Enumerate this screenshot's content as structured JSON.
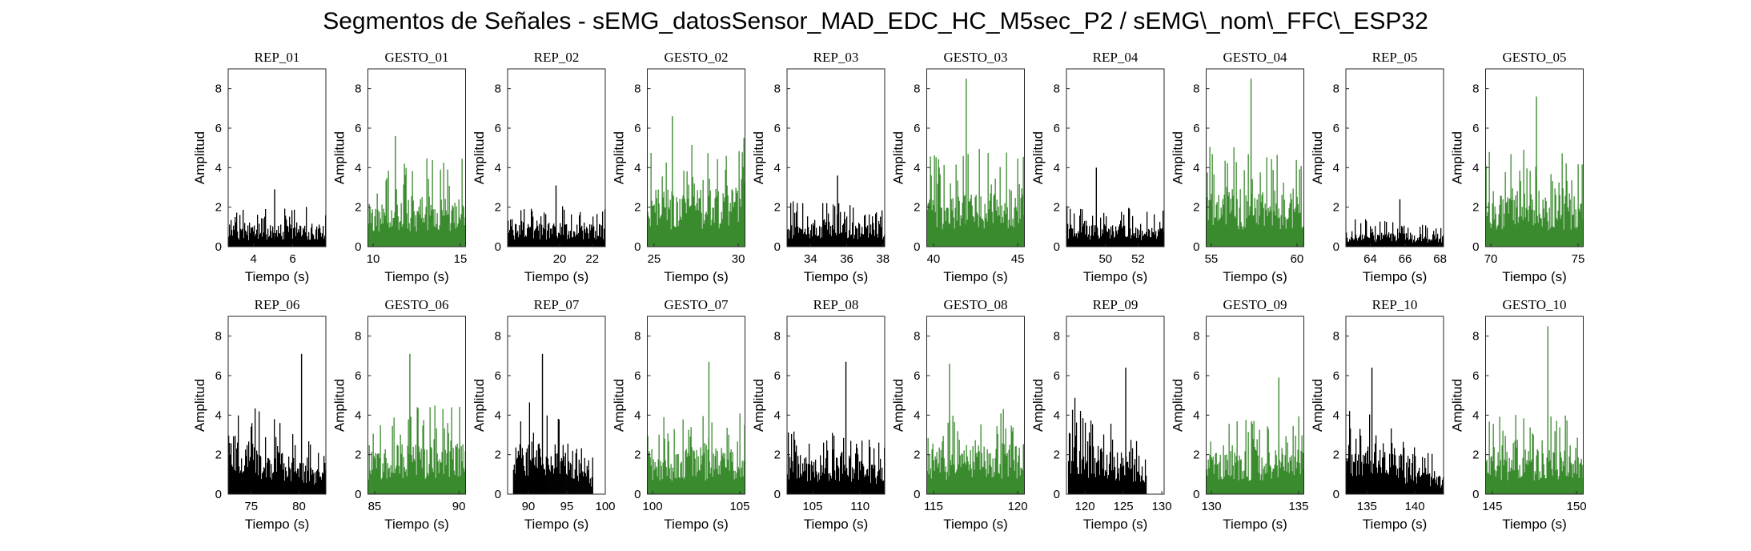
{
  "figure": {
    "title": "Segmentos de Señales - sEMG_datosSensor_MAD_EDC_HC_M5sec_P2 / sEMG\\_nom\\_FFC\\_ESP32"
  },
  "colors": {
    "rep": "#000000",
    "gesto": "#3a8a2e",
    "axis": "#262626"
  },
  "chart_data": [
    {
      "type": "bar",
      "title": "REP_01",
      "xlabel": "Tiempo (s)",
      "ylabel": "Amplitud",
      "xlim": [
        2.7,
        7.7
      ],
      "ylim": [
        0,
        9
      ],
      "xticks": [
        4,
        6
      ],
      "yticks": [
        0,
        2,
        4,
        6,
        8
      ],
      "kind": "rep",
      "x_start": 2.7,
      "x_end": 7.7,
      "level_start": 0.9,
      "level_end": 1.0,
      "peak": 2.9
    },
    {
      "type": "bar",
      "title": "GESTO_01",
      "xlabel": "Tiempo (s)",
      "ylabel": "Amplitud",
      "xlim": [
        9.7,
        15.3
      ],
      "ylim": [
        0,
        9
      ],
      "xticks": [
        10,
        15
      ],
      "yticks": [
        0,
        2,
        4,
        6,
        8
      ],
      "kind": "gesto",
      "x_start": 9.7,
      "x_end": 15.3,
      "level_start": 1.9,
      "level_end": 2.3,
      "peak": 5.6
    },
    {
      "type": "bar",
      "title": "REP_02",
      "xlabel": "Tiempo (s)",
      "ylabel": "Amplitud",
      "xlim": [
        16.8,
        22.8
      ],
      "ylim": [
        0,
        9
      ],
      "xticks": [
        20,
        22
      ],
      "yticks": [
        0,
        2,
        4,
        6,
        8
      ],
      "kind": "rep",
      "x_start": 16.8,
      "x_end": 22.8,
      "level_start": 1.0,
      "level_end": 1.0,
      "peak": 3.1
    },
    {
      "type": "bar",
      "title": "GESTO_02",
      "xlabel": "Tiempo (s)",
      "ylabel": "Amplitud",
      "xlim": [
        24.6,
        30.4
      ],
      "ylim": [
        0,
        9
      ],
      "xticks": [
        25,
        30
      ],
      "yticks": [
        0,
        2,
        4,
        6,
        8
      ],
      "kind": "gesto",
      "x_start": 24.6,
      "x_end": 30.4,
      "level_start": 2.4,
      "level_end": 2.7,
      "peak": 6.6
    },
    {
      "type": "bar",
      "title": "REP_03",
      "xlabel": "Tiempo (s)",
      "ylabel": "Amplitud",
      "xlim": [
        32.7,
        38.1
      ],
      "ylim": [
        0,
        9
      ],
      "xticks": [
        34,
        36,
        38
      ],
      "yticks": [
        0,
        2,
        4,
        6,
        8
      ],
      "kind": "rep",
      "x_start": 32.7,
      "x_end": 38.1,
      "level_start": 1.1,
      "level_end": 1.0,
      "peak": 3.6
    },
    {
      "type": "bar",
      "title": "GESTO_03",
      "xlabel": "Tiempo (s)",
      "ylabel": "Amplitud",
      "xlim": [
        39.6,
        45.4
      ],
      "ylim": [
        0,
        9
      ],
      "xticks": [
        40,
        45
      ],
      "yticks": [
        0,
        2,
        4,
        6,
        8
      ],
      "kind": "gesto",
      "x_start": 39.6,
      "x_end": 45.4,
      "level_start": 2.2,
      "level_end": 2.5,
      "peak": 8.5
    },
    {
      "type": "bar",
      "title": "REP_04",
      "xlabel": "Tiempo (s)",
      "ylabel": "Amplitud",
      "xlim": [
        47.6,
        53.6
      ],
      "ylim": [
        0,
        9
      ],
      "xticks": [
        50,
        52
      ],
      "yticks": [
        0,
        2,
        4,
        6,
        8
      ],
      "kind": "rep",
      "x_start": 47.6,
      "x_end": 53.6,
      "level_start": 1.0,
      "level_end": 0.9,
      "peak": 4.0
    },
    {
      "type": "bar",
      "title": "GESTO_04",
      "xlabel": "Tiempo (s)",
      "ylabel": "Amplitud",
      "xlim": [
        54.7,
        60.4
      ],
      "ylim": [
        0,
        9
      ],
      "xticks": [
        55,
        60
      ],
      "yticks": [
        0,
        2,
        4,
        6,
        8
      ],
      "kind": "gesto",
      "x_start": 54.7,
      "x_end": 60.4,
      "level_start": 2.6,
      "level_end": 2.3,
      "peak": 8.5
    },
    {
      "type": "bar",
      "title": "REP_05",
      "xlabel": "Tiempo (s)",
      "ylabel": "Amplitud",
      "xlim": [
        62.6,
        68.2
      ],
      "ylim": [
        0,
        9
      ],
      "xticks": [
        64,
        66,
        68
      ],
      "yticks": [
        0,
        2,
        4,
        6,
        8
      ],
      "kind": "rep",
      "x_start": 62.6,
      "x_end": 68.2,
      "level_start": 0.7,
      "level_end": 0.5,
      "peak": 2.4
    },
    {
      "type": "bar",
      "title": "GESTO_05",
      "xlabel": "Tiempo (s)",
      "ylabel": "Amplitud",
      "xlim": [
        69.7,
        75.3
      ],
      "ylim": [
        0,
        9
      ],
      "xticks": [
        70,
        75
      ],
      "yticks": [
        0,
        2,
        4,
        6,
        8
      ],
      "kind": "gesto",
      "x_start": 69.7,
      "x_end": 75.3,
      "level_start": 2.4,
      "level_end": 2.3,
      "peak": 7.6
    },
    {
      "type": "bar",
      "title": "REP_06",
      "xlabel": "Tiempo (s)",
      "ylabel": "Amplitud",
      "xlim": [
        72.6,
        82.8
      ],
      "ylim": [
        0,
        9
      ],
      "xticks": [
        75,
        80
      ],
      "yticks": [
        0,
        2,
        4,
        6,
        8
      ],
      "kind": "rep",
      "x_start": 72.6,
      "x_end": 82.8,
      "level_start": 2.6,
      "level_end": 1.0,
      "peak": 7.1
    },
    {
      "type": "bar",
      "title": "GESTO_06",
      "xlabel": "Tiempo (s)",
      "ylabel": "Amplitud",
      "xlim": [
        84.6,
        90.4
      ],
      "ylim": [
        0,
        9
      ],
      "xticks": [
        85,
        90
      ],
      "yticks": [
        0,
        2,
        4,
        6,
        8
      ],
      "kind": "gesto",
      "x_start": 84.6,
      "x_end": 90.4,
      "level_start": 2.1,
      "level_end": 2.2,
      "peak": 7.1
    },
    {
      "type": "bar",
      "title": "REP_07",
      "xlabel": "Tiempo (s)",
      "ylabel": "Amplitud",
      "xlim": [
        87.3,
        100.0
      ],
      "ylim": [
        0,
        9
      ],
      "xticks": [
        90,
        95,
        100
      ],
      "yticks": [
        0,
        2,
        4,
        6,
        8
      ],
      "kind": "rep",
      "x_start": 88.0,
      "x_end": 98.4,
      "level_start": 3.0,
      "level_end": 0.9,
      "peak": 7.1
    },
    {
      "type": "bar",
      "title": "GESTO_07",
      "xlabel": "Tiempo (s)",
      "ylabel": "Amplitud",
      "xlim": [
        99.7,
        105.3
      ],
      "ylim": [
        0,
        9
      ],
      "xticks": [
        100,
        105
      ],
      "yticks": [
        0,
        2,
        4,
        6,
        8
      ],
      "kind": "gesto",
      "x_start": 99.7,
      "x_end": 105.3,
      "level_start": 1.9,
      "level_end": 2.0,
      "peak": 6.7
    },
    {
      "type": "bar",
      "title": "REP_08",
      "xlabel": "Tiempo (s)",
      "ylabel": "Amplitud",
      "xlim": [
        102.3,
        112.6
      ],
      "ylim": [
        0,
        9
      ],
      "xticks": [
        105,
        110
      ],
      "yticks": [
        0,
        2,
        4,
        6,
        8
      ],
      "kind": "rep",
      "x_start": 102.3,
      "x_end": 112.6,
      "level_start": 1.9,
      "level_end": 1.3,
      "peak": 6.7
    },
    {
      "type": "bar",
      "title": "GESTO_08",
      "xlabel": "Tiempo (s)",
      "ylabel": "Amplitud",
      "xlim": [
        114.6,
        120.4
      ],
      "ylim": [
        0,
        9
      ],
      "xticks": [
        115,
        120
      ],
      "yticks": [
        0,
        2,
        4,
        6,
        8
      ],
      "kind": "gesto",
      "x_start": 114.6,
      "x_end": 120.4,
      "level_start": 2.0,
      "level_end": 2.2,
      "peak": 6.6
    },
    {
      "type": "bar",
      "title": "REP_09",
      "xlabel": "Tiempo (s)",
      "ylabel": "Amplitud",
      "xlim": [
        117.6,
        130.3
      ],
      "ylim": [
        0,
        9
      ],
      "xticks": [
        120,
        125,
        130
      ],
      "yticks": [
        0,
        2,
        4,
        6,
        8
      ],
      "kind": "rep",
      "x_start": 117.8,
      "x_end": 128.0,
      "level_start": 2.6,
      "level_end": 1.3,
      "peak": 6.4
    },
    {
      "type": "bar",
      "title": "GESTO_09",
      "xlabel": "Tiempo (s)",
      "ylabel": "Amplitud",
      "xlim": [
        129.7,
        135.3
      ],
      "ylim": [
        0,
        9
      ],
      "xticks": [
        130,
        135
      ],
      "yticks": [
        0,
        2,
        4,
        6,
        8
      ],
      "kind": "gesto",
      "x_start": 129.7,
      "x_end": 135.3,
      "level_start": 1.8,
      "level_end": 2.0,
      "peak": 5.9
    },
    {
      "type": "bar",
      "title": "REP_10",
      "xlabel": "Tiempo (s)",
      "ylabel": "Amplitud",
      "xlim": [
        132.8,
        143.0
      ],
      "ylim": [
        0,
        9
      ],
      "xticks": [
        135,
        140
      ],
      "yticks": [
        0,
        2,
        4,
        6,
        8
      ],
      "kind": "rep",
      "x_start": 132.8,
      "x_end": 143.0,
      "level_start": 2.4,
      "level_end": 0.9,
      "peak": 6.4
    },
    {
      "type": "bar",
      "title": "GESTO_10",
      "xlabel": "Tiempo (s)",
      "ylabel": "Amplitud",
      "xlim": [
        144.6,
        150.4
      ],
      "ylim": [
        0,
        9
      ],
      "xticks": [
        145,
        150
      ],
      "yticks": [
        0,
        2,
        4,
        6,
        8
      ],
      "kind": "gesto",
      "x_start": 144.6,
      "x_end": 150.4,
      "level_start": 2.0,
      "level_end": 1.9,
      "peak": 8.5
    }
  ]
}
